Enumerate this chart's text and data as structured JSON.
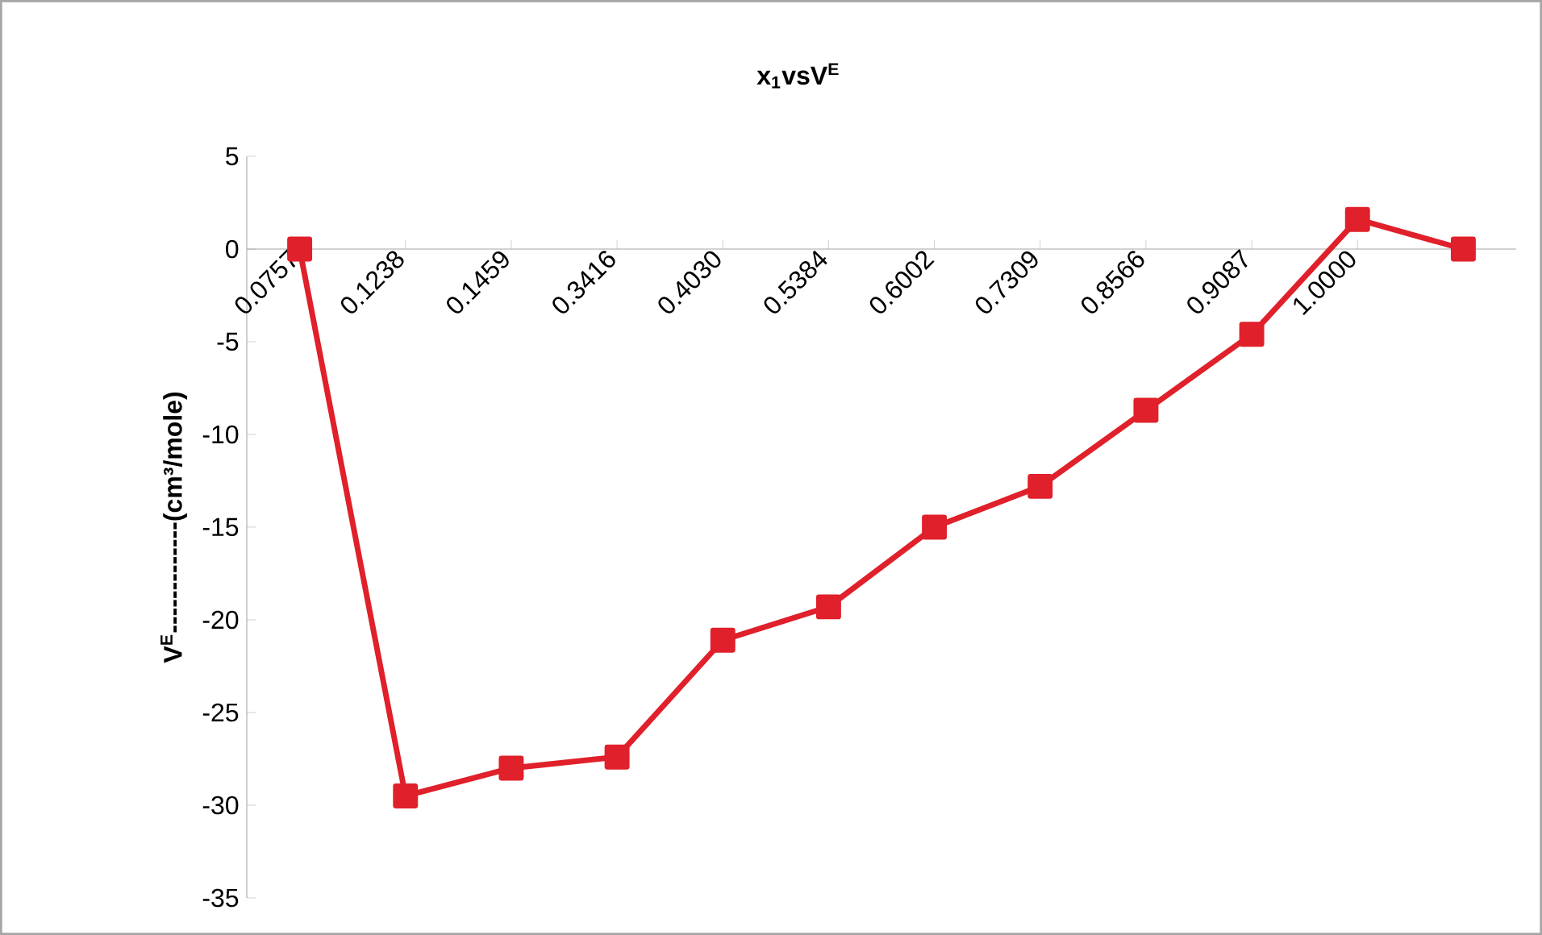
{
  "chart_data": {
    "type": "line",
    "title": "x$_{1}$vsV$^{E}$",
    "ylabel": "V$^{E}$-------------(cm³/mole)",
    "categories": [
      "0.0757",
      "0.1238",
      "0.1459",
      "0.3416",
      "0.4030",
      "0.5384",
      "0.6002",
      "0.7309",
      "0.8566",
      "0.9087",
      "1.0000",
      null
    ],
    "series": [
      {
        "color": "#e0202a",
        "values": [
          0,
          -29.5,
          -28.0,
          -27.4,
          -21.1,
          -19.3,
          -15.0,
          -12.8,
          -8.7,
          -4.6,
          1.6,
          0
        ]
      }
    ],
    "ylim": [
      -35,
      5
    ],
    "yticks": [
      -35,
      -30,
      -25,
      -20,
      -15,
      -10,
      -5,
      0,
      5
    ],
    "marker": "square",
    "line_style": "solid",
    "grid": false
  }
}
